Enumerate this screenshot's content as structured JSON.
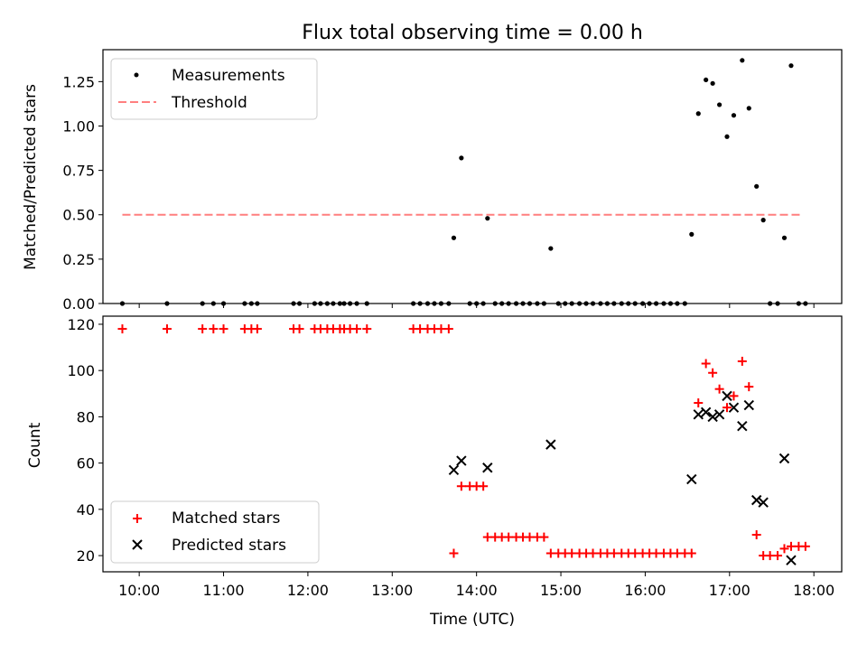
{
  "chart_data": [
    {
      "type": "scatter",
      "title": "Flux total observing time = 0.00 h",
      "xlabel": "",
      "ylabel": "Matched/Predicted stars",
      "ylim": [
        0,
        1.43
      ],
      "xlim": [
        9.57,
        18.33
      ],
      "yticks": [
        0.0,
        0.25,
        0.5,
        0.75,
        1.0,
        1.25
      ],
      "ytick_labels": [
        "0.00",
        "0.25",
        "0.50",
        "0.75",
        "1.00",
        "1.25"
      ],
      "legend_position": "top-left",
      "threshold": {
        "name": "Threshold",
        "value": 0.5,
        "x_start": 9.8,
        "x_end": 17.87,
        "color": "#ff7f7f"
      },
      "series": [
        {
          "name": "Measurements",
          "color": "#000000",
          "x": [
            9.8,
            10.33,
            10.75,
            10.88,
            11.0,
            11.25,
            11.33,
            11.4,
            11.83,
            11.9,
            12.08,
            12.15,
            12.23,
            12.3,
            12.38,
            12.43,
            12.5,
            12.58,
            12.7,
            13.25,
            13.33,
            13.42,
            13.5,
            13.58,
            13.67,
            13.73,
            13.82,
            13.92,
            14.0,
            14.08,
            14.13,
            14.22,
            14.3,
            14.38,
            14.47,
            14.55,
            14.63,
            14.72,
            14.8,
            14.88,
            14.97,
            15.05,
            15.13,
            15.22,
            15.3,
            15.38,
            15.47,
            15.55,
            15.63,
            15.72,
            15.8,
            15.88,
            15.97,
            16.05,
            16.13,
            16.22,
            16.3,
            16.38,
            16.47,
            16.55,
            16.63,
            16.72,
            16.8,
            16.88,
            16.97,
            17.05,
            17.15,
            17.23,
            17.32,
            17.4,
            17.48,
            17.57,
            17.65,
            17.73,
            17.82,
            17.9
          ],
          "y": [
            0.0,
            0.0,
            0.0,
            0.0,
            0.0,
            0.0,
            0.0,
            0.0,
            0.0,
            0.0,
            0.0,
            0.0,
            0.0,
            0.0,
            0.0,
            0.0,
            0.0,
            0.0,
            0.0,
            0.0,
            0.0,
            0.0,
            0.0,
            0.0,
            0.0,
            0.37,
            0.82,
            0.0,
            0.0,
            0.0,
            0.48,
            0.0,
            0.0,
            0.0,
            0.0,
            0.0,
            0.0,
            0.0,
            0.0,
            0.31,
            0.0,
            0.0,
            0.0,
            0.0,
            0.0,
            0.0,
            0.0,
            0.0,
            0.0,
            0.0,
            0.0,
            0.0,
            0.0,
            0.0,
            0.0,
            0.0,
            0.0,
            0.0,
            0.0,
            0.39,
            1.07,
            1.26,
            1.24,
            1.12,
            0.94,
            1.06,
            1.37,
            1.1,
            0.66,
            0.47,
            0.0,
            0.0,
            0.37,
            1.34,
            0.0,
            0.0
          ]
        }
      ]
    },
    {
      "type": "scatter",
      "title": "",
      "xlabel": "Time (UTC)",
      "ylabel": "Count",
      "ylim": [
        13,
        123.5
      ],
      "xlim": [
        9.57,
        18.33
      ],
      "yticks": [
        20,
        40,
        60,
        80,
        100,
        120
      ],
      "ytick_labels": [
        "20",
        "40",
        "60",
        "80",
        "100",
        "120"
      ],
      "xticks": [
        10,
        11,
        12,
        13,
        14,
        15,
        16,
        17,
        18
      ],
      "xtick_labels": [
        "10:00",
        "11:00",
        "12:00",
        "13:00",
        "14:00",
        "15:00",
        "16:00",
        "17:00",
        "18:00"
      ],
      "legend_position": "bottom-left",
      "series": [
        {
          "name": "Matched stars",
          "color": "#ff0000",
          "marker": "plus",
          "x": [
            9.8,
            10.33,
            10.75,
            10.88,
            11.0,
            11.25,
            11.33,
            11.4,
            11.83,
            11.9,
            12.08,
            12.15,
            12.23,
            12.3,
            12.38,
            12.43,
            12.5,
            12.58,
            12.7,
            13.25,
            13.33,
            13.42,
            13.5,
            13.58,
            13.67,
            13.73,
            13.82,
            13.92,
            14.0,
            14.08,
            14.13,
            14.22,
            14.3,
            14.38,
            14.47,
            14.55,
            14.63,
            14.72,
            14.8,
            14.88,
            14.97,
            15.05,
            15.13,
            15.22,
            15.3,
            15.38,
            15.47,
            15.55,
            15.63,
            15.72,
            15.8,
            15.88,
            15.97,
            16.05,
            16.13,
            16.22,
            16.3,
            16.38,
            16.47,
            16.55,
            16.63,
            16.72,
            16.8,
            16.88,
            16.97,
            17.05,
            17.15,
            17.23,
            17.32,
            17.4,
            17.48,
            17.57,
            17.65,
            17.73,
            17.82,
            17.9
          ],
          "y": [
            118,
            118,
            118,
            118,
            118,
            118,
            118,
            118,
            118,
            118,
            118,
            118,
            118,
            118,
            118,
            118,
            118,
            118,
            118,
            118,
            118,
            118,
            118,
            118,
            118,
            21,
            50,
            50,
            50,
            50,
            28,
            28,
            28,
            28,
            28,
            28,
            28,
            28,
            28,
            21,
            21,
            21,
            21,
            21,
            21,
            21,
            21,
            21,
            21,
            21,
            21,
            21,
            21,
            21,
            21,
            21,
            21,
            21,
            21,
            21,
            86,
            103,
            99,
            92,
            84,
            89,
            104,
            93,
            29,
            20,
            20,
            20,
            23,
            24,
            24,
            24
          ]
        },
        {
          "name": "Predicted stars",
          "color": "#000000",
          "marker": "x",
          "x": [
            13.73,
            13.82,
            14.13,
            14.88,
            16.55,
            16.63,
            16.72,
            16.8,
            16.88,
            16.97,
            17.05,
            17.15,
            17.23,
            17.32,
            17.4,
            17.65,
            17.73
          ],
          "y": [
            57,
            61,
            58,
            68,
            53,
            81,
            82,
            80,
            81,
            89,
            84,
            76,
            85,
            44,
            43,
            62,
            18
          ]
        }
      ]
    }
  ]
}
